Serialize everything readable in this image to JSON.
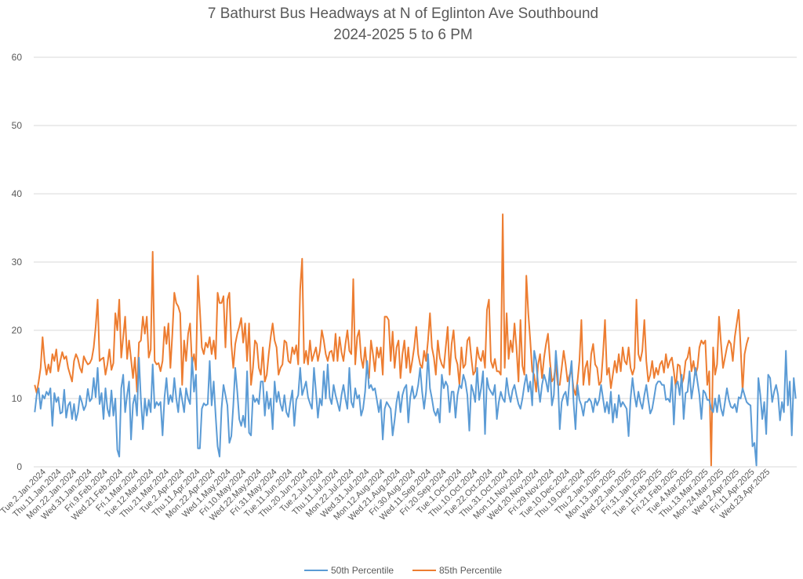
{
  "chart_data": {
    "type": "line",
    "title_lines": [
      "7 Bathurst Bus Headways at N of Eglinton Ave Southbound",
      "2024-2025 5 to 6 PM"
    ],
    "xlabel": "",
    "ylabel": "",
    "ylim": [
      0,
      60
    ],
    "y_ticks": [
      0,
      10,
      20,
      30,
      40,
      50,
      60
    ],
    "grid": true,
    "legend_position": "bottom",
    "x_tick_labels": [
      "Tue.2.Jan.2024",
      "Thu.11.Jan.2024",
      "Mon.22.Jan.2024",
      "Wed.31.Jan.2024",
      "Fri.9.Feb.2024",
      "Wed.21.Feb.2024",
      "Fri.1.Mar.2024",
      "Tue.12.Mar.2024",
      "Thu.21.Mar.2024",
      "Tue.2.Apr.2024",
      "Thu.11.Apr.2024",
      "Mon.22.Apr.2024",
      "Wed.1.May.2024",
      "Fri.10.May.2024",
      "Wed.22.May.2024",
      "Fri.31.May.2024",
      "Tue.11.Jun.2024",
      "Thu.20.Jun.2024",
      "Tue.2.Jul.2024",
      "Thu.11.Jul.2024",
      "Mon.22.Jul.2024",
      "Wed.31.Jul.2024",
      "Mon.12.Aug.2024",
      "Wed.21.Aug.2024",
      "Fri.30.Aug.2024",
      "Wed.11.Sep.2024",
      "Fri.20.Sep.2024",
      "Tue.1.Oct.2024",
      "Thu.10.Oct.2024",
      "Tue.22.Oct.2024",
      "Thu.31.Oct.2024",
      "Mon.11.Nov.2024",
      "Wed.20.Nov.2024",
      "Fri.29.Nov.2024",
      "Tue.10.Dec.2024",
      "Thu.19.Dec.2024",
      "Thu.2.Jan.2025",
      "Mon.13.Jan.2025",
      "Wed.22.Jan.2025",
      "Fri.31.Jan.2025",
      "Tue.11.Feb.2025",
      "Fri.21.Feb.2025",
      "Tue.4.Mar.2025",
      "Thu.13.Mar.2025",
      "Mon.24.Mar.2025",
      "Wed.2.Apr.2025",
      "Fri.11.Apr.2025",
      "Wed.23.Apr.2025"
    ],
    "series": [
      {
        "name": "50th Percentile",
        "color": "#5b9bd5",
        "values": [
          8.0,
          10.5,
          11.5,
          8.5,
          10.5,
          10.0,
          11.0,
          10.5,
          11.5,
          6.0,
          10.8,
          9.5,
          10.2,
          7.8,
          8.0,
          11.3,
          7.2,
          9.0,
          9.5,
          7.0,
          9.2,
          6.8,
          8.0,
          10.4,
          9.5,
          8.3,
          9.0,
          11.4,
          9.6,
          10.0,
          13.0,
          10.2,
          14.5,
          9.2,
          10.8,
          7.0,
          11.5,
          8.5,
          7.4,
          11.2,
          7.5,
          10.0,
          2.5,
          1.5,
          11.5,
          13.5,
          8.0,
          10.5,
          12.5,
          4.0,
          9.2,
          10.5,
          7.5,
          16.0,
          9.8,
          5.5,
          10.0,
          7.5,
          9.8,
          8.0,
          15.0,
          8.6,
          9.5,
          9.0,
          9.5,
          4.6,
          10.2,
          13.0,
          9.2,
          10.5,
          9.5,
          13.0,
          10.0,
          8.0,
          11.5,
          9.8,
          8.0,
          11.5,
          10.0,
          9.2,
          16.0,
          11.0,
          13.5,
          2.7,
          2.7,
          8.5,
          9.3,
          9.0,
          9.2,
          15.5,
          9.0,
          12.5,
          7.5,
          3.0,
          1.5,
          8.5,
          12.0,
          10.5,
          9.0,
          3.5,
          4.5,
          9.0,
          14.5,
          11.0,
          7.0,
          6.0,
          7.5,
          5.8,
          14.0,
          5.0,
          4.6,
          10.5,
          9.5,
          10.0,
          9.2,
          12.5,
          12.5,
          7.5,
          11.0,
          8.5,
          10.0,
          5.5,
          12.5,
          9.5,
          11.0,
          9.2,
          8.2,
          10.5,
          8.0,
          7.3,
          9.5,
          11.2,
          6.0,
          9.8,
          10.5,
          14.5,
          10.5,
          11.5,
          12.5,
          10.2,
          9.3,
          8.5,
          14.5,
          11.0,
          7.2,
          10.0,
          9.0,
          14.0,
          10.0,
          15.0,
          10.2,
          9.2,
          12.0,
          10.5,
          9.4,
          8.2,
          10.5,
          12.0,
          10.0,
          8.5,
          14.5,
          9.5,
          8.7,
          11.5,
          10.0,
          10.5,
          7.5,
          8.5,
          11.0,
          15.5,
          11.5,
          12.0,
          11.2,
          11.5,
          9.8,
          8.0,
          9.8,
          4.0,
          8.5,
          9.5,
          9.0,
          8.5,
          4.6,
          6.8,
          9.5,
          11.0,
          8.0,
          10.5,
          11.5,
          12.0,
          6.5,
          10.2,
          11.8,
          10.0,
          10.5,
          12.0,
          14.5,
          11.0,
          8.5,
          11.0,
          16.5,
          11.5,
          10.0,
          8.2,
          7.5,
          8.5,
          6.5,
          13.5,
          11.5,
          12.5,
          11.8,
          8.0,
          11.0,
          11.0,
          7.2,
          10.5,
          12.0,
          11.5,
          13.5,
          12.5,
          10.5,
          5.3,
          12.0,
          11.0,
          9.5,
          14.5,
          9.8,
          11.5,
          14.0,
          4.8,
          13.0,
          11.5,
          11.0,
          10.5,
          12.0,
          7.0,
          9.5,
          11.0,
          10.0,
          9.5,
          13.0,
          10.8,
          9.5,
          11.2,
          12.0,
          10.5,
          9.2,
          8.5,
          10.0,
          12.0,
          13.5,
          11.0,
          12.5,
          9.0,
          17.0,
          15.5,
          12.0,
          9.5,
          12.0,
          13.5,
          12.5,
          11.0,
          14.5,
          9.0,
          10.5,
          17.0,
          13.5,
          5.5,
          9.5,
          10.5,
          11.0,
          9.0,
          13.0,
          15.5,
          9.5,
          5.5,
          12.0,
          9.8,
          9.0,
          7.5,
          9.5,
          9.5,
          10.0,
          9.5,
          8.0,
          10.0,
          9.0,
          9.8,
          12.0,
          10.0,
          8.0,
          9.5,
          7.8,
          11.0,
          6.5,
          9.2,
          7.2,
          10.5,
          8.8,
          9.5,
          9.0,
          8.5,
          4.5,
          10.0,
          13.0,
          10.5,
          8.8,
          11.0,
          9.5,
          8.5,
          10.5,
          12.0,
          9.8,
          7.8,
          8.5,
          10.2,
          12.0,
          12.5,
          12.5,
          12.0,
          12.0,
          9.8,
          10.0,
          9.5,
          13.2,
          6.2,
          12.0,
          12.5,
          10.5,
          13.5,
          7.0,
          10.8,
          11.0,
          14.0,
          10.0,
          12.0,
          14.5,
          12.5,
          10.5,
          7.0,
          11.2,
          10.8,
          9.8,
          9.8,
          8.5,
          8.0,
          10.0,
          8.0,
          10.5,
          8.5,
          7.5,
          9.5,
          11.5,
          9.8,
          8.8,
          8.6,
          9.2,
          8.0,
          10.2,
          10.0,
          11.5,
          10.5,
          9.5,
          9.2,
          9.0,
          3.0,
          3.5,
          0.2,
          13.0,
          10.5,
          7.0,
          9.5,
          4.8,
          13.5,
          13.0,
          9.5,
          11.0,
          12.0,
          10.5,
          6.8,
          9.5,
          8.0,
          17.0,
          9.0,
          12.5,
          4.6,
          13.0,
          10.0
        ]
      },
      {
        "name": "85th Percentile",
        "color": "#ed7d31",
        "values": [
          12.0,
          10.8,
          12.5,
          14.5,
          19.0,
          15.5,
          13.5,
          15.0,
          13.8,
          16.5,
          15.5,
          17.2,
          14.0,
          15.5,
          16.8,
          15.8,
          16.2,
          14.5,
          13.5,
          12.5,
          15.5,
          16.5,
          15.8,
          14.5,
          13.8,
          16.2,
          15.5,
          15.0,
          15.2,
          15.8,
          17.5,
          20.5,
          24.5,
          15.5,
          15.8,
          16.0,
          13.5,
          15.0,
          17.2,
          14.2,
          15.2,
          22.5,
          20.0,
          24.5,
          16.0,
          19.0,
          22.0,
          15.8,
          18.5,
          15.8,
          13.0,
          16.0,
          11.0,
          18.2,
          18.5,
          22.0,
          19.5,
          22.0,
          16.0,
          17.2,
          31.5,
          15.5,
          15.0,
          15.2,
          14.0,
          15.5,
          20.5,
          18.0,
          21.0,
          14.5,
          19.5,
          25.5,
          24.0,
          23.5,
          22.5,
          12.0,
          18.5,
          15.5,
          19.5,
          21.0,
          15.0,
          16.5,
          14.2,
          28.0,
          23.0,
          17.5,
          16.5,
          18.2,
          17.5,
          19.0,
          16.5,
          18.5,
          15.8,
          25.5,
          24.0,
          24.0,
          25.0,
          17.5,
          24.5,
          25.5,
          18.0,
          14.5,
          18.0,
          19.5,
          20.5,
          21.8,
          18.2,
          21.0,
          15.5,
          21.0,
          12.0,
          14.5,
          18.5,
          18.0,
          14.5,
          13.5,
          17.5,
          12.5,
          13.5,
          16.5,
          19.0,
          21.0,
          18.5,
          17.5,
          13.5,
          14.5,
          15.0,
          18.5,
          18.2,
          15.5,
          15.2,
          17.5,
          16.5,
          17.8,
          15.0,
          26.0,
          30.5,
          15.2,
          17.0,
          15.0,
          18.5,
          15.5,
          16.5,
          17.5,
          15.5,
          17.0,
          20.0,
          18.5,
          16.5,
          15.5,
          16.8,
          17.0,
          15.5,
          19.5,
          15.5,
          19.0,
          16.8,
          15.5,
          18.0,
          20.0,
          17.0,
          16.5,
          27.5,
          15.0,
          19.0,
          20.0,
          16.0,
          14.5,
          17.5,
          14.2,
          13.0,
          18.5,
          16.5,
          14.0,
          17.5,
          16.0,
          17.5,
          13.5,
          22.0,
          22.0,
          21.5,
          15.5,
          19.8,
          14.5,
          17.5,
          18.5,
          13.0,
          16.5,
          18.5,
          14.5,
          17.5,
          13.8,
          15.5,
          17.5,
          20.5,
          16.5,
          15.0,
          14.5,
          17.0,
          15.5,
          18.5,
          22.5,
          17.5,
          16.0,
          13.5,
          18.5,
          16.0,
          15.0,
          14.5,
          17.5,
          20.5,
          13.5,
          18.0,
          20.0,
          16.0,
          15.0,
          12.0,
          17.5,
          14.5,
          15.0,
          18.5,
          19.0,
          16.0,
          13.5,
          14.0,
          17.5,
          16.0,
          15.5,
          17.0,
          14.5,
          23.0,
          24.5,
          15.5,
          14.5,
          15.8,
          14.0,
          14.0,
          13.5,
          37.0,
          14.5,
          22.5,
          15.8,
          18.5,
          16.8,
          21.0,
          17.5,
          12.5,
          21.5,
          14.8,
          13.5,
          28.0,
          22.5,
          18.5,
          14.0,
          13.5,
          11.0,
          15.0,
          16.5,
          13.0,
          16.0,
          18.0,
          19.5,
          15.5,
          12.5,
          13.0,
          15.0,
          12.0,
          12.0,
          14.5,
          17.0,
          15.0,
          12.5,
          13.5,
          14.0,
          11.5,
          10.5,
          12.5,
          15.5,
          21.5,
          12.0,
          14.5,
          15.5,
          12.0,
          16.5,
          18.0,
          15.0,
          14.5,
          12.0,
          12.5,
          16.5,
          21.5,
          13.5,
          14.5,
          11.5,
          13.5,
          15.5,
          13.8,
          16.5,
          14.0,
          17.5,
          15.5,
          15.0,
          17.5,
          14.5,
          13.5,
          14.5,
          24.5,
          16.5,
          15.5,
          17.0,
          21.5,
          15.5,
          12.5,
          13.5,
          15.5,
          13.0,
          14.5,
          13.5,
          15.0,
          15.5,
          13.8,
          16.5,
          14.5,
          15.5,
          16.0,
          14.0,
          11.5,
          15.0,
          14.8,
          12.0,
          13.0,
          15.5,
          16.0,
          17.5,
          14.0,
          15.5,
          13.5,
          14.5,
          17.5,
          18.5,
          18.0,
          18.5,
          12.0,
          14.0,
          0.2,
          17.5,
          13.5,
          15.0,
          22.0,
          18.0,
          14.5,
          16.0,
          17.5,
          18.5,
          18.0,
          15.5,
          19.0,
          21.0,
          23.0,
          17.5,
          11.0,
          16.5,
          18.0,
          19.0
        ]
      }
    ]
  }
}
